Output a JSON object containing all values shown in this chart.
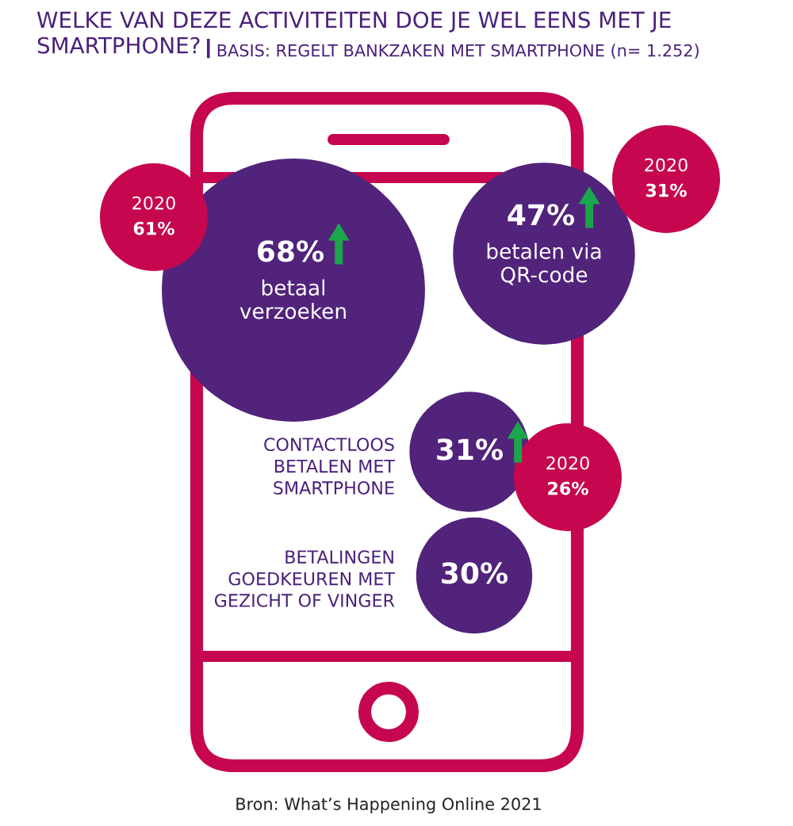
{
  "chart_data": {
    "type": "other",
    "title": "WELKE VAN DEZE ACTIVITEITEN DOE JE WEL EENS MET JE SMARTPHONE?",
    "subtitle": "BASIS: REGELT BANKZAKEN MET SMARTPHONE (n= 1.252)",
    "categories": [
      "betaal verzoeken",
      "betalen via QR-code",
      "CONTACTLOOS BETALEN MET SMARTPHONE",
      "BETALINGEN GOEDKEUREN MET GEZICHT OF VINGER"
    ],
    "series": [
      {
        "color": "#51237b",
        "values": [
          68,
          47,
          31,
          30
        ],
        "value_labels": [
          "68%",
          "47%",
          "31%",
          "30%"
        ]
      },
      {
        "name": "2020",
        "color": "#c6074f",
        "values": [
          61,
          31,
          26,
          null
        ],
        "value_labels": [
          "61%",
          "31%",
          "26%",
          null
        ]
      }
    ],
    "annotations": [
      "Bron: What’s Happening Online 2021"
    ]
  }
}
